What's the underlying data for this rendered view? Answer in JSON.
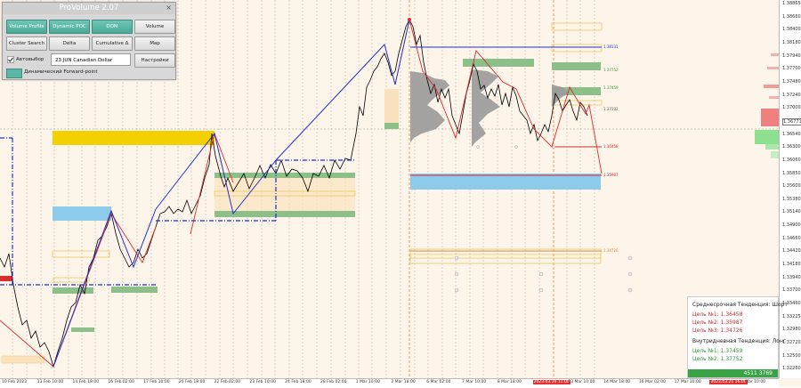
{
  "app": {
    "panel_title": "ProVolume 2.07",
    "close_glyph": "×",
    "buttons": [
      {
        "label": "Volume Profile",
        "style": "green"
      },
      {
        "label": "Dynamic POC",
        "style": "green"
      },
      {
        "label": "DOM",
        "style": "green"
      },
      {
        "label": "Volume",
        "style": "gray"
      },
      {
        "label": "Cluster Search",
        "style": "gray"
      },
      {
        "label": "Delta",
        "style": "gray"
      },
      {
        "label": "Cumulative Δ",
        "style": "gray"
      },
      {
        "label": "Map",
        "style": "gray"
      }
    ],
    "auto_select_label": "Автовыбор",
    "instrument_value": "23 JUN Canadian Dollar",
    "settings_label": "Настройки",
    "dynamic_fp_label": "Динамический Forward-point"
  },
  "price_axis": {
    "labels": [
      "1.38865",
      "1.38660",
      "1.38400",
      "1.38180",
      "1.37940",
      "1.37700",
      "1.37480",
      "1.37240",
      "1.37000",
      "1.36771",
      "1.36540",
      "1.36300",
      "1.36060",
      "1.35850",
      "1.35600",
      "1.35380",
      "1.35140",
      "1.34900",
      "1.34660",
      "1.34420",
      "1.34180",
      "1.33940",
      "1.33700",
      "1.33460",
      "1.33225",
      "1.32980",
      "1.32720",
      "1.32500",
      "1.32260"
    ],
    "current_price_tag": "1.36771"
  },
  "time_axis": {
    "labels": [
      {
        "text": "10 Feb 2023",
        "highlight": false
      },
      {
        "text": "13 Feb 10:00",
        "highlight": false
      },
      {
        "text": "14 Feb 18:00",
        "highlight": false
      },
      {
        "text": "16 Feb 02:00",
        "highlight": false
      },
      {
        "text": "17 Feb 10:00",
        "highlight": false
      },
      {
        "text": "20 Feb 18:00",
        "highlight": false
      },
      {
        "text": "22 Feb 02:00",
        "highlight": false
      },
      {
        "text": "23 Feb 10:00",
        "highlight": false
      },
      {
        "text": "24 Feb 18:00",
        "highlight": false
      },
      {
        "text": "28 Feb 02:00",
        "highlight": false
      },
      {
        "text": "1 Mar 10:00",
        "highlight": false
      },
      {
        "text": "2 Mar 18:00",
        "highlight": false
      },
      {
        "text": "6 Mar 02:00",
        "highlight": false
      },
      {
        "text": "7 Mar 10:00",
        "highlight": false
      },
      {
        "text": "8 Mar 18:00",
        "highlight": false
      },
      {
        "text": "2023.03.10 11:00",
        "highlight": true
      },
      {
        "text": "13 Mar 10:00",
        "highlight": false
      },
      {
        "text": "14 Mar 18:00",
        "highlight": false
      },
      {
        "text": "16 Mar 02:00",
        "highlight": false
      },
      {
        "text": "17 Mar 10:00",
        "highlight": false
      },
      {
        "text": "2023.03.21 16:00",
        "highlight": true
      },
      {
        "text": "Mar 10:00",
        "highlight": false
      }
    ]
  },
  "levels": {
    "top_blue": "1.38131",
    "green1": "1.37752",
    "green2": "1.37459",
    "mid": "1.37102",
    "red1": "1.36458",
    "red2": "1.35987",
    "orange": "1.34726"
  },
  "info_panel": {
    "mid_term_heading": "Среднесрочная Тенденция: Шорт",
    "mid_targets": [
      "Цель №1: 1.36458",
      "Цель №2: 1.35987",
      "Цель №3: 1.34726"
    ],
    "intraday_heading": "Внутридневная Тенденция: Лонг",
    "intraday_targets": [
      "Цель №1: 1.37459",
      "Цель №2: 1.37752"
    ],
    "footer_value": "4511 3769"
  },
  "colors": {
    "chart_bg": "#fdf4ea",
    "gold_zone": "#f5d000",
    "blue_zone": "#8ecbea",
    "green_zone": "#8dbf88",
    "trend_blue": "#2230c8",
    "trend_red": "#d82e2e",
    "accent_green_button": "#5bb7a6"
  }
}
